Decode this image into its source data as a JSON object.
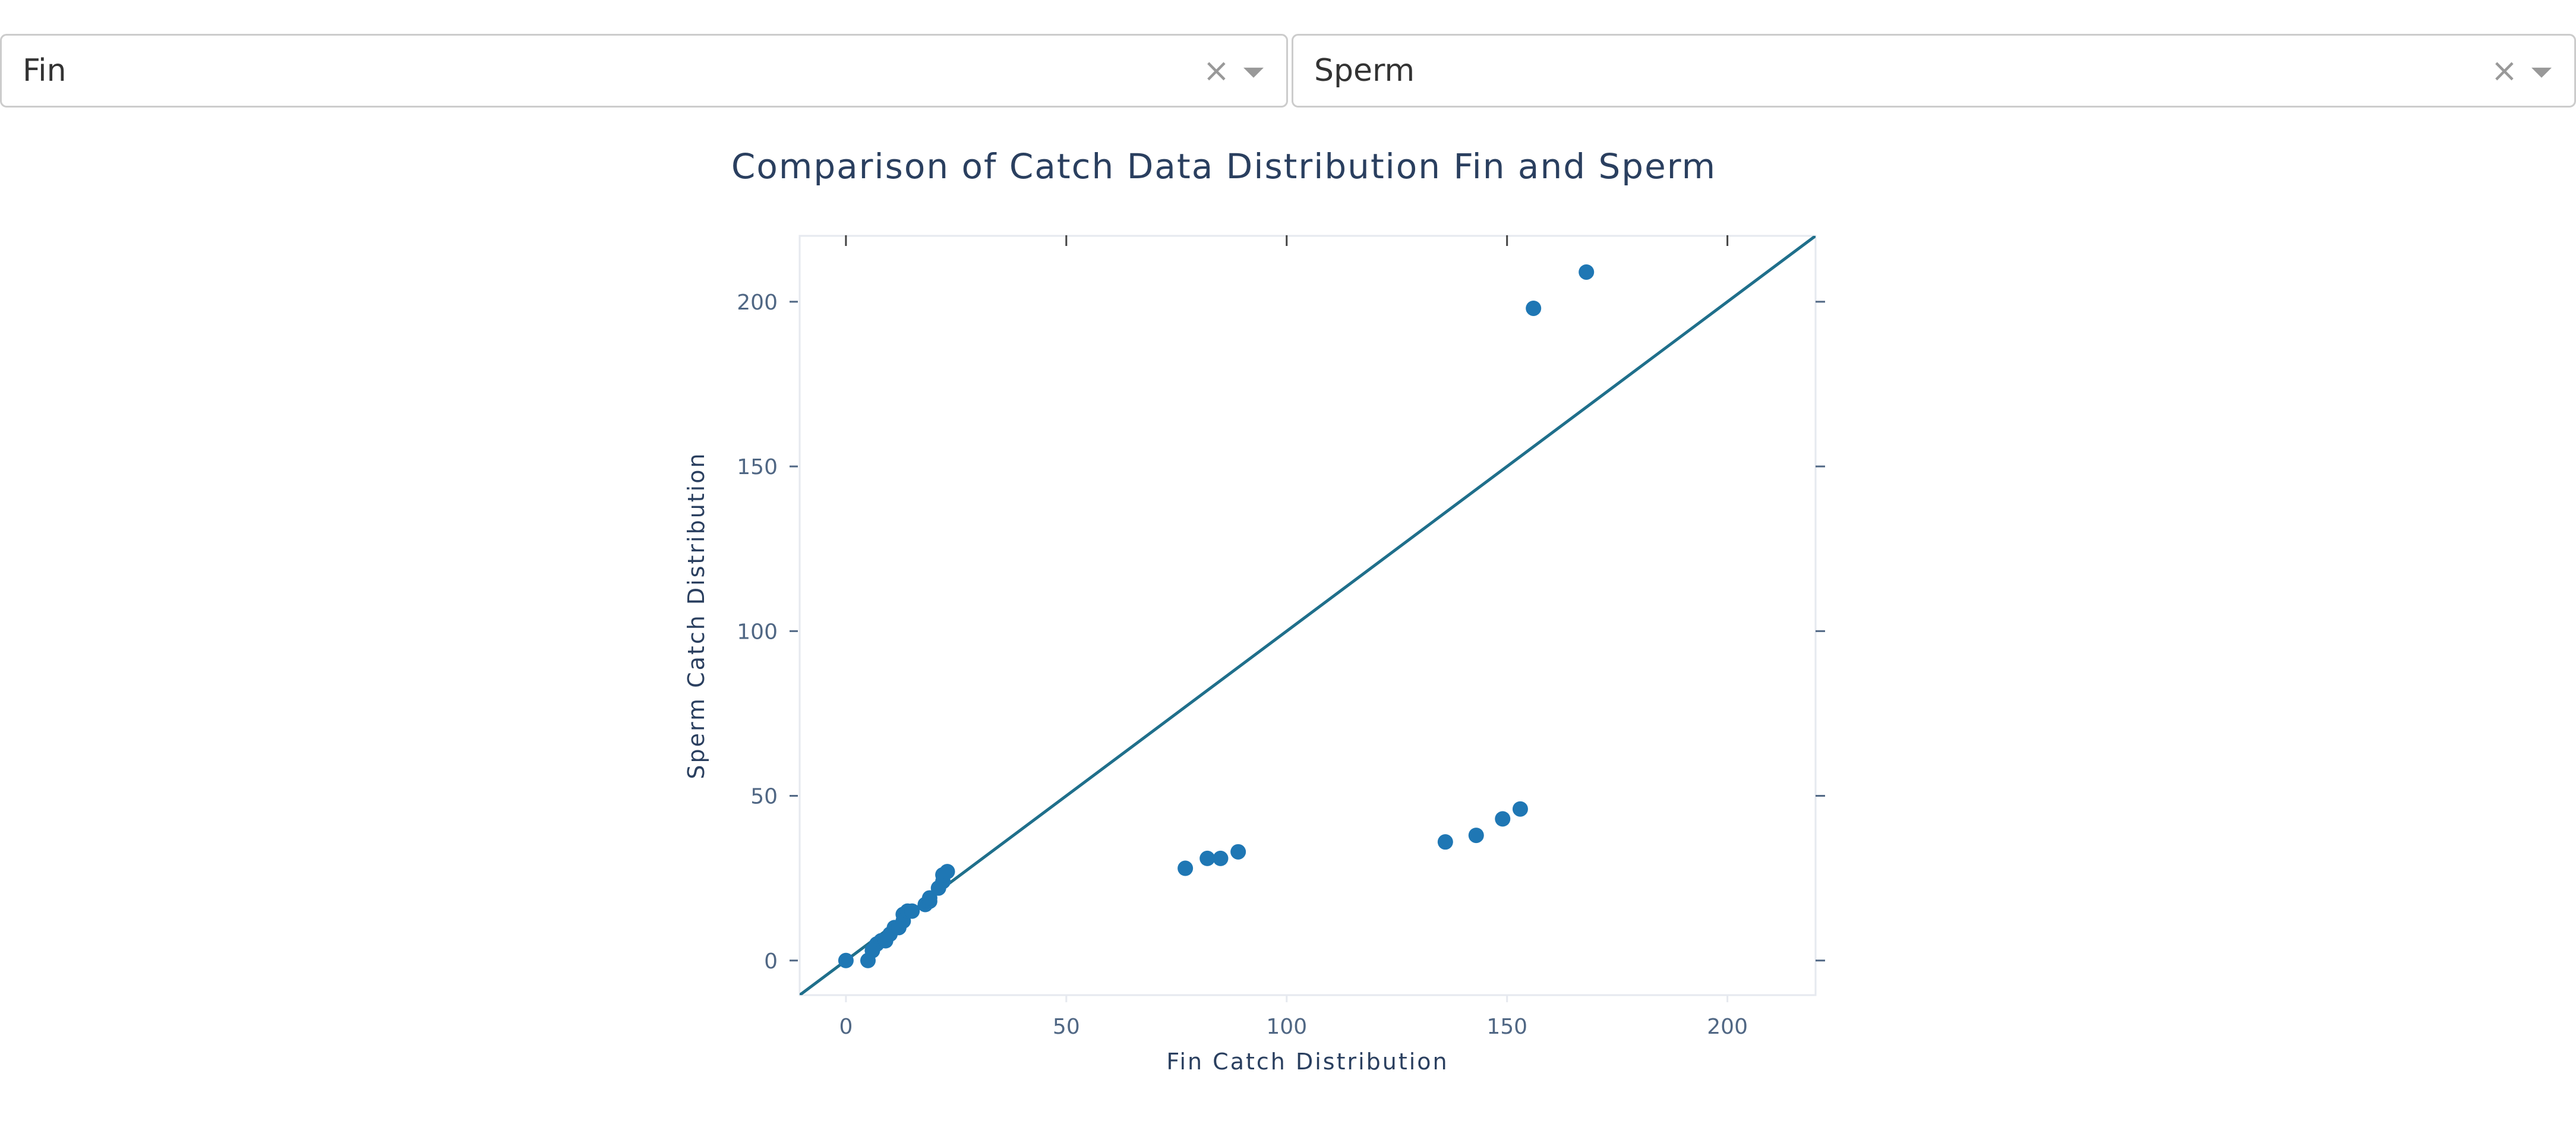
{
  "controls": {
    "left_dropdown": {
      "value": "Fin",
      "clear_glyph": "×"
    },
    "right_dropdown": {
      "value": "Sperm",
      "clear_glyph": "×"
    }
  },
  "chart_data": {
    "type": "scatter",
    "title": "Comparison of Catch Data Distribution Fin and Sperm",
    "xlabel": "Fin Catch Distribution",
    "ylabel": "Sperm Catch Distribution",
    "xlim": [
      -10.5,
      220
    ],
    "ylim": [
      -10.5,
      220
    ],
    "xticks": [
      0,
      50,
      100,
      150,
      200
    ],
    "yticks": [
      0,
      50,
      100,
      150,
      200
    ],
    "xtick_labels": [
      "0",
      "50",
      "100",
      "150",
      "200"
    ],
    "ytick_labels": [
      "0",
      "50",
      "100",
      "150",
      "200"
    ],
    "reference_line": {
      "name": "y = x",
      "from": [
        -10.5,
        -10.5
      ],
      "to": [
        220,
        220
      ],
      "color": "#1f6f8b"
    },
    "marker_color": "#1f77b4",
    "points": [
      {
        "x": 0,
        "y": 0
      },
      {
        "x": 5,
        "y": 0
      },
      {
        "x": 6,
        "y": 3
      },
      {
        "x": 7,
        "y": 5
      },
      {
        "x": 8,
        "y": 6
      },
      {
        "x": 9,
        "y": 6
      },
      {
        "x": 10,
        "y": 8
      },
      {
        "x": 11,
        "y": 10
      },
      {
        "x": 12,
        "y": 10
      },
      {
        "x": 13,
        "y": 12
      },
      {
        "x": 13,
        "y": 14
      },
      {
        "x": 14,
        "y": 15
      },
      {
        "x": 15,
        "y": 15
      },
      {
        "x": 18,
        "y": 17
      },
      {
        "x": 19,
        "y": 18
      },
      {
        "x": 19,
        "y": 19
      },
      {
        "x": 21,
        "y": 22
      },
      {
        "x": 22,
        "y": 24
      },
      {
        "x": 22,
        "y": 26
      },
      {
        "x": 23,
        "y": 27
      },
      {
        "x": 77,
        "y": 28
      },
      {
        "x": 82,
        "y": 31
      },
      {
        "x": 85,
        "y": 31
      },
      {
        "x": 89,
        "y": 33
      },
      {
        "x": 136,
        "y": 36
      },
      {
        "x": 143,
        "y": 38
      },
      {
        "x": 149,
        "y": 43
      },
      {
        "x": 153,
        "y": 46
      },
      {
        "x": 156,
        "y": 198
      },
      {
        "x": 168,
        "y": 209
      }
    ]
  }
}
